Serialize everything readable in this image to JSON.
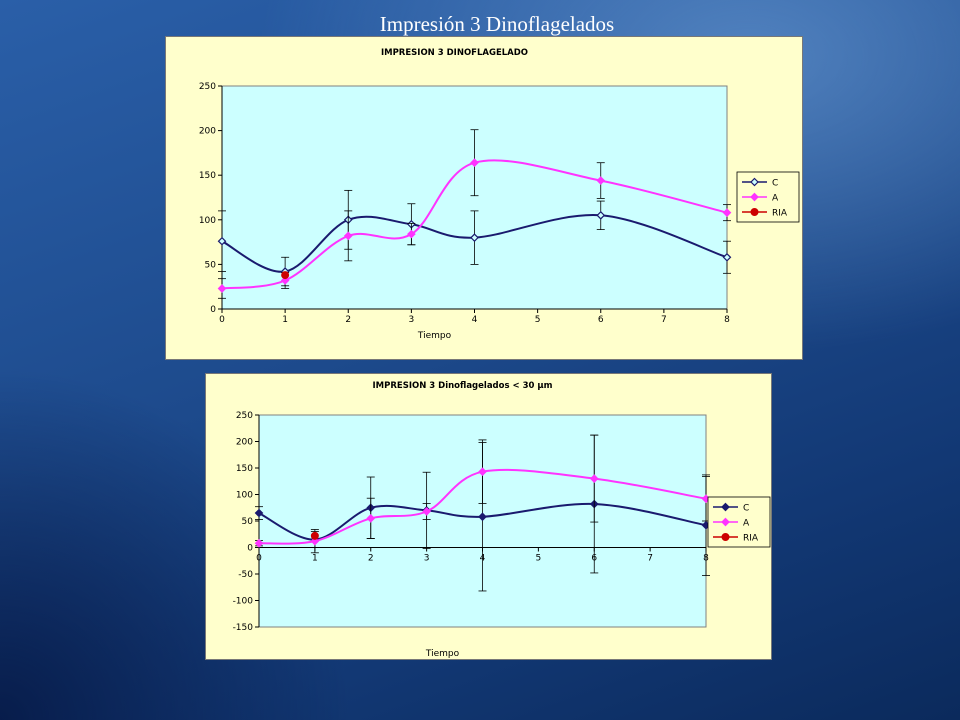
{
  "slide": {
    "title": "Impresión 3 Dinoflagelados"
  },
  "colors": {
    "C": "#1a1a6e",
    "A": "#ff33ff",
    "RIA": "#cc0000",
    "plot_bg": "#ccffff",
    "panel_bg": "#ffffcc"
  },
  "chart_data": [
    {
      "type": "line",
      "title": "IMPRESION 3 DINOFLAGELADO",
      "xlabel": "Tiempo",
      "ylabel": "",
      "xlim": [
        0,
        8
      ],
      "ylim": [
        0,
        250
      ],
      "xticks": [
        0,
        1,
        2,
        3,
        4,
        5,
        6,
        7,
        8
      ],
      "yticks": [
        0,
        50,
        100,
        150,
        200,
        250
      ],
      "grid": false,
      "legend": "right",
      "series": [
        {
          "name": "C",
          "x": [
            0,
            1,
            2,
            3,
            4,
            6,
            8
          ],
          "y": [
            76,
            42,
            100,
            95,
            80,
            105,
            58
          ],
          "err": [
            34,
            16,
            33,
            23,
            30,
            16,
            18
          ],
          "marker": "diamond-open"
        },
        {
          "name": "A",
          "x": [
            0,
            1,
            2,
            3,
            4,
            6,
            8
          ],
          "y": [
            23,
            32,
            82,
            84,
            164,
            144,
            108
          ],
          "err": [
            11,
            9,
            28,
            12,
            37,
            20,
            9
          ],
          "marker": "diamond"
        },
        {
          "name": "RIA",
          "x": [
            1
          ],
          "y": [
            38
          ],
          "err": [],
          "marker": "circle"
        }
      ]
    },
    {
      "type": "line",
      "title": "IMPRESION 3 Dinoflagelados < 30 µm",
      "xlabel": "Tiempo",
      "ylabel": "",
      "xlim": [
        0,
        8
      ],
      "ylim": [
        -150,
        250
      ],
      "xticks": [
        0,
        1,
        2,
        3,
        4,
        5,
        6,
        7,
        8
      ],
      "yticks": [
        -150,
        -100,
        -50,
        0,
        50,
        100,
        150,
        200,
        250
      ],
      "grid": false,
      "legend": "right",
      "series": [
        {
          "name": "C",
          "x": [
            0,
            1,
            2,
            3,
            4,
            6,
            8
          ],
          "y": [
            65,
            15,
            75,
            70,
            58,
            82,
            42
          ],
          "err": [
            12,
            15,
            58,
            72,
            140,
            130,
            95
          ],
          "marker": "diamond"
        },
        {
          "name": "A",
          "x": [
            0,
            1,
            2,
            3,
            4,
            6,
            8
          ],
          "y": [
            8,
            12,
            55,
            68,
            143,
            130,
            92
          ],
          "err": [
            5,
            22,
            38,
            15,
            60,
            82,
            42
          ],
          "marker": "diamond"
        },
        {
          "name": "RIA",
          "x": [
            1
          ],
          "y": [
            22
          ],
          "err": [],
          "marker": "circle"
        }
      ]
    }
  ]
}
